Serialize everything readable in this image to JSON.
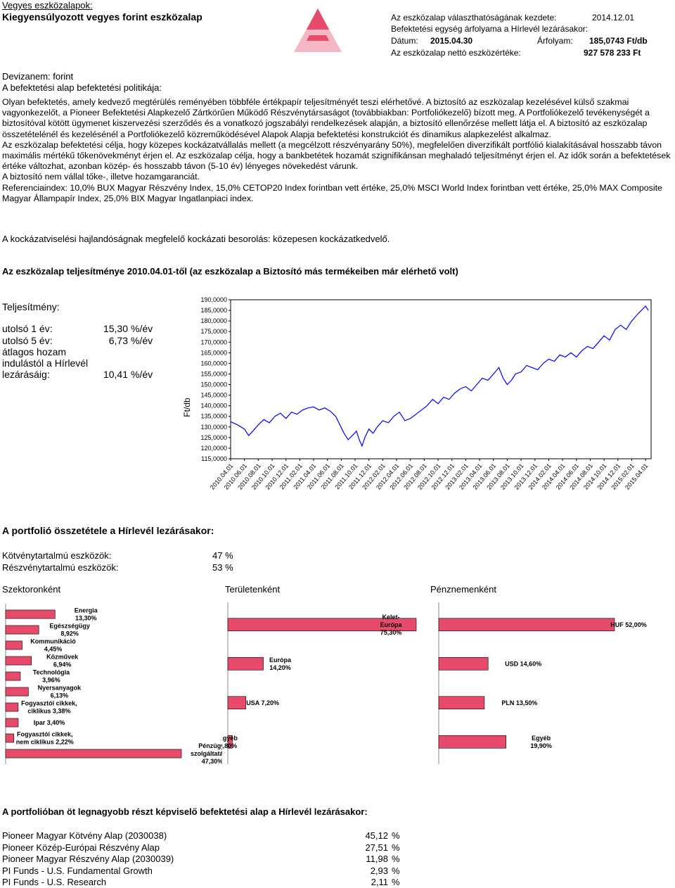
{
  "header": {
    "category": "Vegyes eszközalapok:",
    "fund_name": "Kiegyensúlyozott vegyes forint eszközalap",
    "start_label": "Az eszközalap választhatóságának kezdete:",
    "start_date": "2014.12.01",
    "unit_price_label": "Befektetési egység árfolyama a Hírlevél lezárásakor:",
    "date_label": "Dátum:",
    "date_value": "2015.04.30",
    "price_label": "Árfolyam:",
    "price_value": "185,0743 Ft/db",
    "nav_label": "Az eszközalap nettó eszközértéke:",
    "nav_value": "927 578 233 Ft",
    "currency": "Devizanem: forint",
    "policy_label": "A befektetési alap befektetési politikája:"
  },
  "policy_text": [
    "Olyan befektetés, amely kedvező megtérülés reményében többféle értékpapír teljesítményét teszi elérhetővé. A biztosító az eszközalap kezelésével külső szakmai vagyonkezelőt, a Pioneer Befektetési Alapkezelő Zártkörűen Működő Részvénytársaságot (továbbiakban: Portfoliókezelő) bízott meg. A Portfoliókezelő tevékenységét a biztosítóval kötött ügymenet kiszervezési szerződés és a vonatkozó jogszabályi rendelkezések alapján, a biztosító ellenőrzése mellett látja el. A biztosító az eszközalap összetételénél és kezelésénél a Portfoliókezelő közreműködésével Alapok Alapja befektetési konstrukciót és dinamikus alapkezelést alkalmaz.",
    "Az eszközalap befektetési célja, hogy közepes kockázatvállalás mellett (a megcélzott részvényarány 50%), megfelelően diverzifikált portfólió kialakításával hosszabb távon maximális mértékű tőkenövekményt érjen el. Az eszközalap célja, hogy a bankbetétek hozamát szignifikánsan meghaladó teljesítményt érjen el. Az idők során a befektetések értéke változhat, azonban közép- és hosszabb távon (5-10 év) lényeges növekedést várunk.",
    "A biztosító nem vállal tőke-, illetve hozamgaranciát.",
    "Referenciaindex: 10,0% BUX Magyar Részvény Index, 15,0% CETOP20 Index forintban vett értéke, 25,0% MSCI World Index forintban vett értéke, 25,0% MAX Composite Magyar Állampapír Index, 25,0% BIX Magyar Ingatlanpiaci index."
  ],
  "risk_text": "A kockázatviselési hajlandóságnak megfelelő kockázati besorolás: közepesen kockázatkedvelő.",
  "performance_title": "Az eszközalap teljesítménye 2010.04.01-től (az eszközalap a Biztosító más termékeiben már elérhető volt)",
  "performance": {
    "heading": "Teljesítmény:",
    "rows": [
      {
        "label": "utolsó 1 év:",
        "value": "15,30",
        "unit": "%/év"
      },
      {
        "label": "utolsó 5 év:",
        "value": "6,73",
        "unit": "%/év"
      }
    ],
    "avg_label_1": "átlagos hozam",
    "avg_label_2": "indulástól a Hírlevél",
    "avg_label_3": "lezárásáig:",
    "avg_value": "10,41",
    "avg_unit": "%/év"
  },
  "portfolio": {
    "title": "A portfolió összetétele a Hírlevél lezárásakor:",
    "bond_label": "Kötvénytartalmú eszközök:",
    "bond_value": "47 %",
    "equity_label": "Részvénytartalmú eszközök:",
    "equity_value": "53 %",
    "sector_title": "Szektoronként",
    "region_title": "Területenként",
    "currency_title": "Pénznemenként"
  },
  "top5": {
    "title": "A portfolióban öt legnagyobb részt képviselő befektetési alap a Hírlevél lezárásakor:",
    "items": [
      {
        "name": "Pioneer Magyar Kötvény Alap (2030038)",
        "value": "45,12",
        "unit": "%"
      },
      {
        "name": "Pioneer Közép-Európai Részvény Alap",
        "value": "27,51",
        "unit": "%"
      },
      {
        "name": "Pioneer Magyar Részvény Alap (2030039)",
        "value": "11,98",
        "unit": "%"
      },
      {
        "name": "PI Funds - U.S. Fundamental Growth",
        "value": "2,93",
        "unit": "%"
      },
      {
        "name": "PI Funds - U.S. Research",
        "value": "2,11",
        "unit": "%"
      }
    ]
  },
  "colors": {
    "accent": "#e84a6b",
    "pyramid_dark": "#e84a6b",
    "pyramid_light": "#f5b7c4",
    "line": "#0000ff"
  },
  "chart_data": [
    {
      "type": "line",
      "ylabel": "Ft/db",
      "ylim": [
        115,
        190
      ],
      "yticks": [
        "190,0000",
        "185,0000",
        "180,0000",
        "175,0000",
        "170,0000",
        "165,0000",
        "160,0000",
        "155,0000",
        "150,0000",
        "145,0000",
        "140,0000",
        "135,0000",
        "130,0000",
        "125,0000",
        "120,0000",
        "115,0000"
      ],
      "xticks": [
        "2010.04.01",
        "2010.06.01",
        "2010.08.01",
        "2010.10.01",
        "2010.12.01",
        "2011.02.01",
        "2011.04.01",
        "2011.06.01",
        "2011.08.01",
        "2011.10.01",
        "2011.12.01",
        "2012.02.01",
        "2012.04.01",
        "2012.06.01",
        "2012.08.01",
        "2012.10.01",
        "2012.12.01",
        "2013.02.01",
        "2013.04.01",
        "2013.06.01",
        "2013.08.01",
        "2013.10.01",
        "2013.12.01",
        "2014.02.01",
        "2014.04.01",
        "2014.06.01",
        "2014.08.01",
        "2014.10.01",
        "2014.12.01",
        "2015.02.01",
        "2015.04.01"
      ],
      "series": [
        {
          "values": [
            [
              0,
              132.5
            ],
            [
              0.5,
              131
            ],
            [
              1,
              129
            ],
            [
              1.3,
              126
            ],
            [
              1.6,
              128
            ],
            [
              2,
              131
            ],
            [
              2.4,
              133.5
            ],
            [
              2.8,
              132
            ],
            [
              3.2,
              135
            ],
            [
              3.6,
              136.5
            ],
            [
              4,
              134
            ],
            [
              4.4,
              137
            ],
            [
              4.8,
              136
            ],
            [
              5.2,
              138
            ],
            [
              5.6,
              139
            ],
            [
              6,
              139.5
            ],
            [
              6.4,
              138
            ],
            [
              6.8,
              139
            ],
            [
              7.2,
              137.5
            ],
            [
              7.6,
              135
            ],
            [
              7.9,
              131
            ],
            [
              8.2,
              127
            ],
            [
              8.5,
              124
            ],
            [
              8.8,
              126
            ],
            [
              9.1,
              128
            ],
            [
              9.3,
              124
            ],
            [
              9.5,
              121
            ],
            [
              9.7,
              125
            ],
            [
              10,
              129
            ],
            [
              10.3,
              127
            ],
            [
              10.6,
              130
            ],
            [
              11,
              133
            ],
            [
              11.4,
              132
            ],
            [
              11.8,
              135
            ],
            [
              12.2,
              137
            ],
            [
              12.6,
              133
            ],
            [
              13,
              134
            ],
            [
              13.4,
              136
            ],
            [
              13.8,
              138
            ],
            [
              14.2,
              140
            ],
            [
              14.6,
              143
            ],
            [
              15,
              141
            ],
            [
              15.4,
              144
            ],
            [
              15.8,
              143
            ],
            [
              16.2,
              146
            ],
            [
              16.6,
              148
            ],
            [
              17,
              149
            ],
            [
              17.4,
              147
            ],
            [
              17.8,
              150
            ],
            [
              18.2,
              153
            ],
            [
              18.6,
              152
            ],
            [
              19,
              155
            ],
            [
              19.4,
              158
            ],
            [
              19.7,
              153
            ],
            [
              20,
              150
            ],
            [
              20.3,
              152
            ],
            [
              20.6,
              155
            ],
            [
              21,
              156
            ],
            [
              21.4,
              159
            ],
            [
              21.8,
              158
            ],
            [
              22.2,
              157
            ],
            [
              22.6,
              160
            ],
            [
              23,
              162
            ],
            [
              23.4,
              161
            ],
            [
              23.8,
              164
            ],
            [
              24.2,
              163
            ],
            [
              24.6,
              165
            ],
            [
              25,
              163
            ],
            [
              25.4,
              166
            ],
            [
              25.8,
              168
            ],
            [
              26.2,
              167
            ],
            [
              26.6,
              170
            ],
            [
              27,
              173
            ],
            [
              27.4,
              171
            ],
            [
              27.8,
              176
            ],
            [
              28.2,
              178
            ],
            [
              28.6,
              176
            ],
            [
              29,
              180
            ],
            [
              29.4,
              183
            ],
            [
              29.7,
              185
            ],
            [
              30,
              187
            ],
            [
              30.2,
              185
            ]
          ]
        }
      ]
    },
    {
      "type": "bar",
      "orientation": "horizontal",
      "categories": [
        "Energia",
        "Egészségügy",
        "Kommunikáció",
        "Közművek",
        "Technológia",
        "Nyersanyagok",
        "Fogyasztói cikkek, ciklikus",
        "Ipar",
        "Fogyasztói cikkek, nem ciklikus",
        "Pénzügyi szolgáltatások"
      ],
      "values": [
        13.3,
        8.92,
        4.45,
        6.94,
        3.96,
        6.13,
        3.38,
        3.4,
        2.22,
        47.3
      ],
      "labels": [
        "Energia\n13,30%",
        "Egészségügy\n8,92%",
        "Kommunikáció\n4,45%",
        "Közművek\n6,94%",
        "Technológia\n3,96%",
        "Nyersanyagok\n6,13%",
        "Fogyasztói cikkek,\nciklikus 3,38%",
        "Ipar 3,40%",
        "Fogyasztói cikkek,\nnem ciklikus 2,22%",
        "Pénzügyi\nszolgáltatások\n47,30%"
      ]
    },
    {
      "type": "bar",
      "orientation": "horizontal",
      "categories": [
        "Kelet-Európa",
        "Európa",
        "USA",
        "Egyéb"
      ],
      "values": [
        75.3,
        14.2,
        7.2,
        1.8
      ],
      "labels": [
        "Kelet-\nEurópa\n75,30%",
        "Európa\n14,20%",
        "USA 7,20%",
        "Egyéb\n1,80%"
      ]
    },
    {
      "type": "bar",
      "orientation": "horizontal",
      "categories": [
        "HUF",
        "USD",
        "PLN",
        "Egyéb"
      ],
      "values": [
        52.0,
        14.6,
        13.5,
        19.9
      ],
      "labels": [
        "HUF 52,00%",
        "USD 14,60%",
        "PLN 13,50%",
        "Egyéb\n19,90%"
      ]
    }
  ]
}
